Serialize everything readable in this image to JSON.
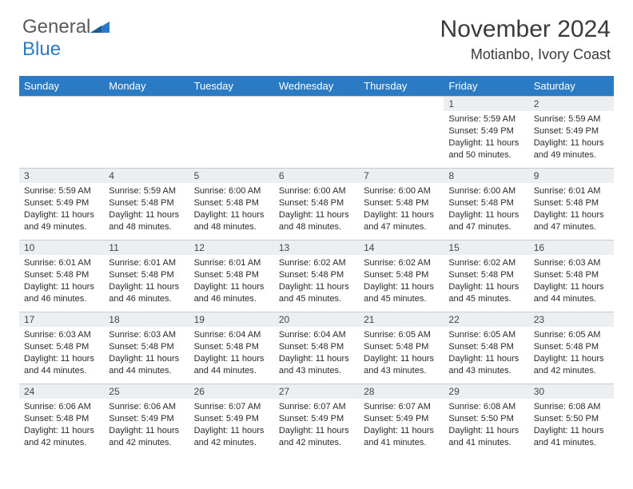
{
  "logo": {
    "line1": "General",
    "line2": "Blue"
  },
  "header": {
    "title": "November 2024",
    "location": "Motianbo, Ivory Coast"
  },
  "colors": {
    "header_bg": "#2a7bc4",
    "daynum_bg": "#eceff1",
    "border": "#c9c9c9"
  },
  "weekdays": [
    "Sunday",
    "Monday",
    "Tuesday",
    "Wednesday",
    "Thursday",
    "Friday",
    "Saturday"
  ],
  "weeks": [
    [
      {
        "n": "",
        "c": ""
      },
      {
        "n": "",
        "c": ""
      },
      {
        "n": "",
        "c": ""
      },
      {
        "n": "",
        "c": ""
      },
      {
        "n": "",
        "c": ""
      },
      {
        "n": "1",
        "c": "Sunrise: 5:59 AM\nSunset: 5:49 PM\nDaylight: 11 hours and 50 minutes."
      },
      {
        "n": "2",
        "c": "Sunrise: 5:59 AM\nSunset: 5:49 PM\nDaylight: 11 hours and 49 minutes."
      }
    ],
    [
      {
        "n": "3",
        "c": "Sunrise: 5:59 AM\nSunset: 5:49 PM\nDaylight: 11 hours and 49 minutes."
      },
      {
        "n": "4",
        "c": "Sunrise: 5:59 AM\nSunset: 5:48 PM\nDaylight: 11 hours and 48 minutes."
      },
      {
        "n": "5",
        "c": "Sunrise: 6:00 AM\nSunset: 5:48 PM\nDaylight: 11 hours and 48 minutes."
      },
      {
        "n": "6",
        "c": "Sunrise: 6:00 AM\nSunset: 5:48 PM\nDaylight: 11 hours and 48 minutes."
      },
      {
        "n": "7",
        "c": "Sunrise: 6:00 AM\nSunset: 5:48 PM\nDaylight: 11 hours and 47 minutes."
      },
      {
        "n": "8",
        "c": "Sunrise: 6:00 AM\nSunset: 5:48 PM\nDaylight: 11 hours and 47 minutes."
      },
      {
        "n": "9",
        "c": "Sunrise: 6:01 AM\nSunset: 5:48 PM\nDaylight: 11 hours and 47 minutes."
      }
    ],
    [
      {
        "n": "10",
        "c": "Sunrise: 6:01 AM\nSunset: 5:48 PM\nDaylight: 11 hours and 46 minutes."
      },
      {
        "n": "11",
        "c": "Sunrise: 6:01 AM\nSunset: 5:48 PM\nDaylight: 11 hours and 46 minutes."
      },
      {
        "n": "12",
        "c": "Sunrise: 6:01 AM\nSunset: 5:48 PM\nDaylight: 11 hours and 46 minutes."
      },
      {
        "n": "13",
        "c": "Sunrise: 6:02 AM\nSunset: 5:48 PM\nDaylight: 11 hours and 45 minutes."
      },
      {
        "n": "14",
        "c": "Sunrise: 6:02 AM\nSunset: 5:48 PM\nDaylight: 11 hours and 45 minutes."
      },
      {
        "n": "15",
        "c": "Sunrise: 6:02 AM\nSunset: 5:48 PM\nDaylight: 11 hours and 45 minutes."
      },
      {
        "n": "16",
        "c": "Sunrise: 6:03 AM\nSunset: 5:48 PM\nDaylight: 11 hours and 44 minutes."
      }
    ],
    [
      {
        "n": "17",
        "c": "Sunrise: 6:03 AM\nSunset: 5:48 PM\nDaylight: 11 hours and 44 minutes."
      },
      {
        "n": "18",
        "c": "Sunrise: 6:03 AM\nSunset: 5:48 PM\nDaylight: 11 hours and 44 minutes."
      },
      {
        "n": "19",
        "c": "Sunrise: 6:04 AM\nSunset: 5:48 PM\nDaylight: 11 hours and 44 minutes."
      },
      {
        "n": "20",
        "c": "Sunrise: 6:04 AM\nSunset: 5:48 PM\nDaylight: 11 hours and 43 minutes."
      },
      {
        "n": "21",
        "c": "Sunrise: 6:05 AM\nSunset: 5:48 PM\nDaylight: 11 hours and 43 minutes."
      },
      {
        "n": "22",
        "c": "Sunrise: 6:05 AM\nSunset: 5:48 PM\nDaylight: 11 hours and 43 minutes."
      },
      {
        "n": "23",
        "c": "Sunrise: 6:05 AM\nSunset: 5:48 PM\nDaylight: 11 hours and 42 minutes."
      }
    ],
    [
      {
        "n": "24",
        "c": "Sunrise: 6:06 AM\nSunset: 5:48 PM\nDaylight: 11 hours and 42 minutes."
      },
      {
        "n": "25",
        "c": "Sunrise: 6:06 AM\nSunset: 5:49 PM\nDaylight: 11 hours and 42 minutes."
      },
      {
        "n": "26",
        "c": "Sunrise: 6:07 AM\nSunset: 5:49 PM\nDaylight: 11 hours and 42 minutes."
      },
      {
        "n": "27",
        "c": "Sunrise: 6:07 AM\nSunset: 5:49 PM\nDaylight: 11 hours and 42 minutes."
      },
      {
        "n": "28",
        "c": "Sunrise: 6:07 AM\nSunset: 5:49 PM\nDaylight: 11 hours and 41 minutes."
      },
      {
        "n": "29",
        "c": "Sunrise: 6:08 AM\nSunset: 5:50 PM\nDaylight: 11 hours and 41 minutes."
      },
      {
        "n": "30",
        "c": "Sunrise: 6:08 AM\nSunset: 5:50 PM\nDaylight: 11 hours and 41 minutes."
      }
    ]
  ]
}
